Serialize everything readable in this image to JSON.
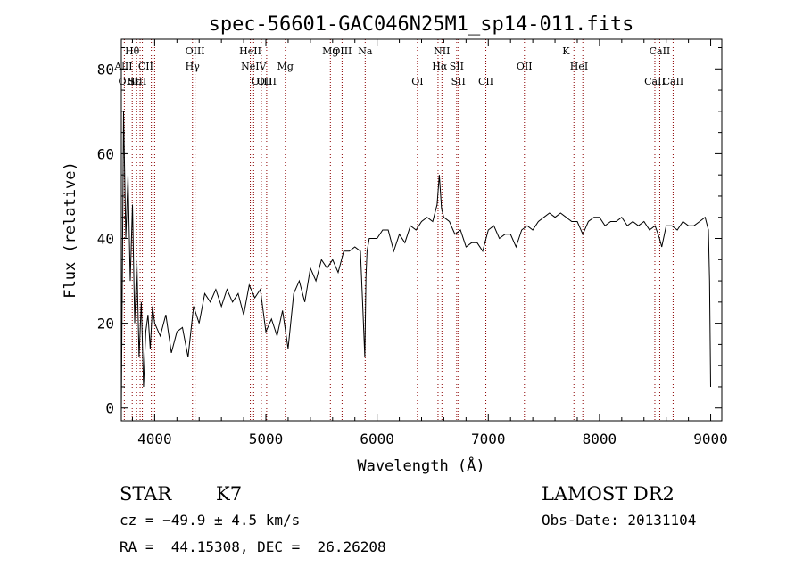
{
  "chart_data": {
    "type": "line",
    "title": "spec-56601-GAC046N25M1_sp14-011.fits",
    "xlabel": "Wavelength (Å)",
    "ylabel": "Flux (relative)",
    "xlim": [
      3700,
      9100
    ],
    "ylim": [
      -3,
      87
    ],
    "xticks": [
      4000,
      5000,
      6000,
      7000,
      8000,
      9000
    ],
    "yticks": [
      0,
      20,
      40,
      60,
      80
    ],
    "line_color": "#000000",
    "marker_color": "#8b0000",
    "spectrum": {
      "x": [
        3700,
        3720,
        3740,
        3760,
        3780,
        3800,
        3820,
        3840,
        3860,
        3880,
        3900,
        3920,
        3940,
        3960,
        3980,
        4000,
        4050,
        4100,
        4150,
        4200,
        4250,
        4300,
        4350,
        4400,
        4450,
        4500,
        4550,
        4600,
        4650,
        4700,
        4750,
        4800,
        4850,
        4900,
        4950,
        5000,
        5050,
        5100,
        5150,
        5200,
        5250,
        5300,
        5350,
        5400,
        5450,
        5500,
        5550,
        5600,
        5650,
        5700,
        5750,
        5800,
        5850,
        5870,
        5890,
        5900,
        5910,
        5930,
        5950,
        6000,
        6050,
        6100,
        6150,
        6200,
        6250,
        6300,
        6350,
        6400,
        6450,
        6500,
        6540,
        6560,
        6580,
        6600,
        6650,
        6700,
        6750,
        6800,
        6850,
        6900,
        6950,
        7000,
        7050,
        7100,
        7150,
        7200,
        7250,
        7300,
        7350,
        7400,
        7450,
        7500,
        7550,
        7600,
        7650,
        7700,
        7750,
        7800,
        7850,
        7900,
        7950,
        8000,
        8050,
        8100,
        8150,
        8200,
        8250,
        8300,
        8350,
        8400,
        8450,
        8500,
        8540,
        8560,
        8600,
        8650,
        8700,
        8750,
        8800,
        8850,
        8900,
        8950,
        8980,
        8990,
        9000
      ],
      "y": [
        -1,
        70,
        40,
        55,
        30,
        48,
        20,
        35,
        12,
        25,
        5,
        18,
        22,
        14,
        24,
        20,
        17,
        22,
        13,
        18,
        19,
        12,
        24,
        20,
        27,
        25,
        28,
        24,
        28,
        25,
        27,
        22,
        29,
        26,
        28,
        18,
        21,
        17,
        23,
        14,
        27,
        30,
        25,
        33,
        30,
        35,
        33,
        35,
        32,
        37,
        37,
        38,
        37,
        25,
        12,
        31,
        37,
        40,
        40,
        40,
        42,
        42,
        37,
        41,
        39,
        43,
        42,
        44,
        45,
        44,
        48,
        55,
        47,
        45,
        44,
        41,
        42,
        38,
        39,
        39,
        37,
        42,
        43,
        40,
        41,
        41,
        38,
        42,
        43,
        42,
        44,
        45,
        46,
        45,
        46,
        45,
        44,
        44,
        41,
        44,
        45,
        45,
        43,
        44,
        44,
        45,
        43,
        44,
        43,
        44,
        42,
        43,
        40,
        38,
        43,
        43,
        42,
        44,
        43,
        43,
        44,
        45,
        42,
        30,
        5
      ]
    },
    "lines": [
      {
        "label": "Hθ",
        "wave": 3798,
        "row": 1
      },
      {
        "label": "AlII",
        "wave": 3720,
        "row": 2
      },
      {
        "label": "OIII",
        "wave": 3760,
        "row": 3
      },
      {
        "label": "Hε",
        "wave": 3809,
        "row": 3
      },
      {
        "label": "SIII",
        "wave": 3845,
        "row": 3
      },
      {
        "label": "CII",
        "wave": 3920,
        "row": 2
      },
      {
        "label": "OIII",
        "wave": 4363,
        "row": 1
      },
      {
        "label": "Hγ",
        "wave": 4340,
        "row": 2
      },
      {
        "label": "HeII",
        "wave": 4860,
        "row": 1
      },
      {
        "label": "NeIV",
        "wave": 4890,
        "row": 2
      },
      {
        "label": "OIII",
        "wave": 4959,
        "row": 3
      },
      {
        "label": "OIII",
        "wave": 5007,
        "row": 3
      },
      {
        "label": "Mg",
        "wave": 5175,
        "row": 2
      },
      {
        "label": "Mg",
        "wave": 5580,
        "row": 1
      },
      {
        "label": "OIII",
        "wave": 5685,
        "row": 1
      },
      {
        "label": "Na",
        "wave": 5893,
        "row": 1
      },
      {
        "label": "OI",
        "wave": 6363,
        "row": 3
      },
      {
        "label": "NII",
        "wave": 6583,
        "row": 1
      },
      {
        "label": "Hα",
        "wave": 6563,
        "row": 2
      },
      {
        "label": "SII",
        "wave": 6716,
        "row": 2
      },
      {
        "label": "SII",
        "wave": 6731,
        "row": 3
      },
      {
        "label": "CII",
        "wave": 6978,
        "row": 3
      },
      {
        "label": "OII",
        "wave": 7325,
        "row": 2
      },
      {
        "label": "K",
        "wave": 7699,
        "row": 1
      },
      {
        "label": "HeI",
        "wave": 7816,
        "row": 2
      },
      {
        "label": "CaII",
        "wave": 8542,
        "row": 1
      },
      {
        "label": "CaII",
        "wave": 8498,
        "row": 3
      },
      {
        "label": "CaII",
        "wave": 8662,
        "row": 3
      }
    ],
    "marker_waves": [
      3727,
      3760,
      3798,
      3835,
      3869,
      3889,
      3970,
      4000,
      4340,
      4363,
      4860,
      4890,
      4959,
      5007,
      5175,
      5580,
      5685,
      5893,
      6363,
      6548,
      6583,
      6716,
      6731,
      6978,
      7325,
      7770,
      7850,
      8498,
      8542,
      8662
    ]
  },
  "footer": {
    "object_class": "STAR",
    "subclass": "K7",
    "survey": "LAMOST DR2",
    "redshift": "cz = −49.9 ± 4.5 km/s",
    "obs_date": "Obs-Date: 20131104",
    "coords": "RA =  44.15308, DEC =  26.26208"
  }
}
